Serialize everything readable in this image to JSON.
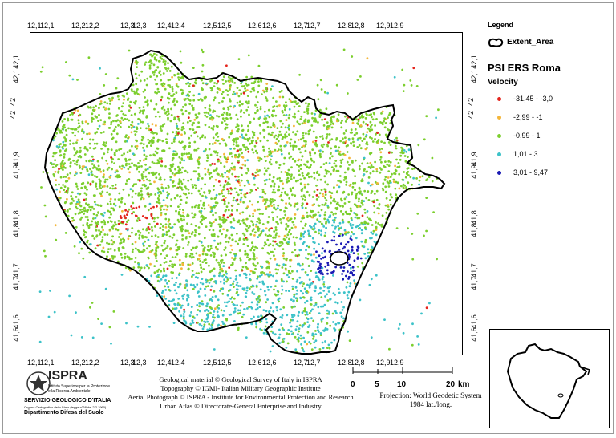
{
  "map": {
    "top_ticks": [
      "12,1",
      "12,1",
      "12,2",
      "12,2",
      "12,3",
      "12,3",
      "12,4",
      "12,4",
      "12,5",
      "12,5",
      "12,6",
      "12,6",
      "12,7",
      "12,7",
      "12,8",
      "12,8",
      "12,9",
      "12,9"
    ],
    "bottom_ticks": [
      "12,1",
      "12,1",
      "12,2",
      "12,2",
      "12,3",
      "12,3",
      "12,4",
      "12,4",
      "12,5",
      "12,5",
      "12,6",
      "12,6",
      "12,7",
      "12,7",
      "12,8",
      "12,8",
      "12,9",
      "12,9"
    ],
    "left_ticks": [
      "42,1",
      "42,1",
      "42",
      "42",
      "41,9",
      "41,9",
      "41,8",
      "41,8",
      "41,7",
      "41,7",
      "41,6",
      "41,6"
    ],
    "right_ticks": [
      "42,1",
      "42,1",
      "42",
      "42",
      "41,9",
      "41,9",
      "41,8",
      "41,8",
      "41,7",
      "41,7",
      "41,6",
      "41,6"
    ],
    "extent_color": "#000000"
  },
  "legend": {
    "title": "Legend",
    "extent_label": "Extent_Area",
    "layer_title": "PSI ERS Roma",
    "field_title": "Velocity",
    "classes": [
      {
        "label": "-31,45 - -3,0",
        "color": "#e4241c"
      },
      {
        "label": "-2,99 - -1",
        "color": "#f4b63a"
      },
      {
        "label": "-0,99 - 1",
        "color": "#7ccf2e"
      },
      {
        "label": "1,01 - 3",
        "color": "#3cc2c8"
      },
      {
        "label": "3,01 - 9,47",
        "color": "#1a1ab4"
      }
    ]
  },
  "logo": {
    "name": "ISPRA",
    "line1": "Istituto Superiore per la Protezione",
    "line2": "e la Ricerca Ambientale",
    "service": "SERVIZIO GEOLOGICO D'ITALIA",
    "service_sub": "Organo Cartografico dello Stato (legge n°68 del 2.2.1960)",
    "department": "Dipartimento Difesa del Suolo"
  },
  "credits": [
    "Geological material © Geological Survey of Italy in ISPRA",
    "Topography © IGMI- Italian Military Geographic Institute",
    "Aerial Photograph © ISPRA - Institute for Environmental Protection and Research",
    "Urban Atlas © Directorate-General Enterprise and Industry"
  ],
  "scale": {
    "labels": [
      "0",
      "5",
      "10",
      "20"
    ],
    "unit": "km"
  },
  "projection": {
    "line1": "Projection: World Geodetic System",
    "line2": "1984 lat./long."
  }
}
